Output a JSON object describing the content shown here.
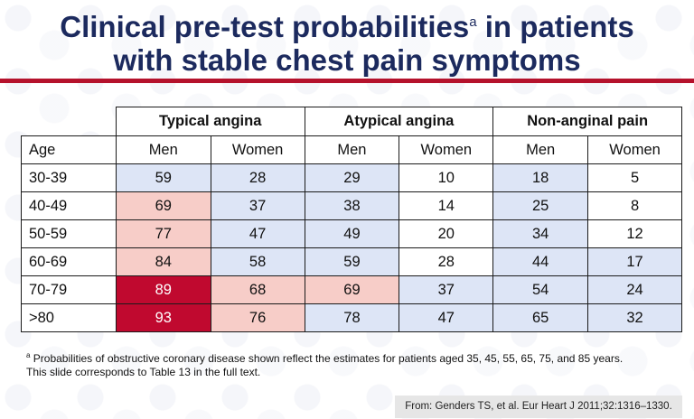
{
  "slide": {
    "title_line1_pre": "Clinical pre-test probabilities",
    "title_sup": "a",
    "title_line1_post": " in patients",
    "title_line2": "with stable chest pain symptoms"
  },
  "table": {
    "groups": [
      "Typical angina",
      "Atypical angina",
      "Non-anginal pain"
    ],
    "age_header": "Age",
    "sub_headers": [
      "Men",
      "Women",
      "Men",
      "Women",
      "Men",
      "Women"
    ],
    "rows": [
      {
        "age": "30-39",
        "values": [
          "59",
          "28",
          "29",
          "10",
          "18",
          "5"
        ]
      },
      {
        "age": "40-49",
        "values": [
          "69",
          "37",
          "38",
          "14",
          "25",
          "8"
        ]
      },
      {
        "age": "50-59",
        "values": [
          "77",
          "47",
          "49",
          "20",
          "34",
          "12"
        ]
      },
      {
        "age": "60-69",
        "values": [
          "84",
          "58",
          "59",
          "28",
          "44",
          "17"
        ]
      },
      {
        "age": "70-79",
        "values": [
          "89",
          "68",
          "69",
          "37",
          "54",
          "24"
        ]
      },
      {
        "age": ">80",
        "values": [
          "93",
          "76",
          "78",
          "47",
          "65",
          "32"
        ]
      }
    ],
    "colors": {
      "light_blue": "#dde5f6",
      "white": "#ffffff",
      "pink": "#f7cdc8",
      "red": "#c0092f"
    }
  },
  "footnote": {
    "sup": "a",
    "line1": " Probabilities of obstructive coronary disease shown reflect the estimates for patients aged 35, 45, 55, 65, 75, and 85 years.",
    "line2": "This slide corresponds to Table 13 in the full text."
  },
  "citation": "From: Genders TS, et al. Eur Heart J 2011;32:1316–1330."
}
